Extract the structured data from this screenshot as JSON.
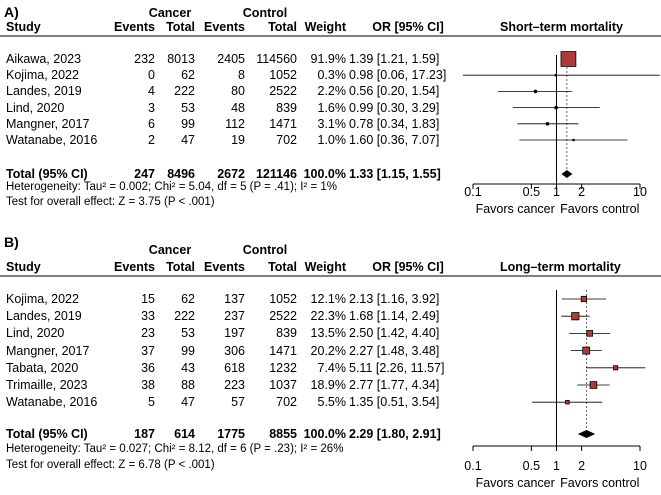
{
  "chart_data": [
    {
      "type": "forest",
      "panel_label": "A)",
      "title": "Short–term mortality",
      "group_headers": [
        "Cancer",
        "Control"
      ],
      "columns": [
        "Study",
        "Events",
        "Total",
        "Events",
        "Total",
        "Weight",
        "OR [95% CI]"
      ],
      "studies": [
        {
          "name": "Aikawa, 2023",
          "ev1": "232",
          "n1": "8013",
          "ev2": "2405",
          "n2": "114560",
          "weight": "91.9%",
          "ci_text": "1.39 [1.21,  1.59]",
          "or": 1.39,
          "lo": 1.21,
          "hi": 1.59,
          "w": 91.9
        },
        {
          "name": "Kojima, 2022",
          "ev1": "0",
          "n1": "62",
          "ev2": "8",
          "n2": "1052",
          "weight": "0.3%",
          "ci_text": "0.98 [0.06, 17.23]",
          "or": 0.98,
          "lo": 0.06,
          "hi": 17.23,
          "w": 0.3
        },
        {
          "name": "Landes, 2019",
          "ev1": "4",
          "n1": "222",
          "ev2": "80",
          "n2": "2522",
          "weight": "2.2%",
          "ci_text": "0.56 [0.20,  1.54]",
          "or": 0.56,
          "lo": 0.2,
          "hi": 1.54,
          "w": 2.2
        },
        {
          "name": "Lind, 2020",
          "ev1": "3",
          "n1": "53",
          "ev2": "48",
          "n2": "839",
          "weight": "1.6%",
          "ci_text": "0.99 [0.30,  3.29]",
          "or": 0.99,
          "lo": 0.3,
          "hi": 3.29,
          "w": 1.6
        },
        {
          "name": "Mangner, 2017",
          "ev1": "6",
          "n1": "99",
          "ev2": "112",
          "n2": "1471",
          "weight": "3.1%",
          "ci_text": "0.78 [0.34,  1.83]",
          "or": 0.78,
          "lo": 0.34,
          "hi": 1.83,
          "w": 3.1
        },
        {
          "name": "Watanabe, 2016",
          "ev1": "2",
          "n1": "47",
          "ev2": "19",
          "n2": "702",
          "weight": "1.0%",
          "ci_text": "1.60 [0.36,  7.07]",
          "or": 1.6,
          "lo": 0.36,
          "hi": 7.07,
          "w": 1.0
        }
      ],
      "total": {
        "name": "Total (95% CI)",
        "ev1": "247",
        "n1": "8496",
        "ev2": "2672",
        "n2": "121146",
        "weight": "100.0%",
        "ci_text": "1.33 [1.15,  1.55]",
        "or": 1.33,
        "lo": 1.15,
        "hi": 1.55
      },
      "heterogeneity": "Heterogeneity: Tau² = 0.002; Chi² = 5.04, df = 5 (P = .41); I² = 1%",
      "overall_effect": "Test for overall effect: Z = 3.75 (P < .001)",
      "x_ticks": [
        0.1,
        0.5,
        1,
        2,
        10
      ],
      "x_tick_labels": [
        "0.1",
        "0.5",
        "1",
        "2",
        "10"
      ],
      "xlim": [
        0.1,
        10
      ],
      "x_scale": "log",
      "favors_left": "Favors cancer",
      "favors_right": "Favors control"
    },
    {
      "type": "forest",
      "panel_label": "B)",
      "title": "Long–term mortality",
      "group_headers": [
        "Cancer",
        "Control"
      ],
      "columns": [
        "Study",
        "Events",
        "Total",
        "Events",
        "Total",
        "Weight",
        "OR [95% CI]"
      ],
      "studies": [
        {
          "name": "Kojima, 2022",
          "ev1": "15",
          "n1": "62",
          "ev2": "137",
          "n2": "1052",
          "weight": "12.1%",
          "ci_text": "2.13 [1.16,  3.92]",
          "or": 2.13,
          "lo": 1.16,
          "hi": 3.92,
          "w": 12.1
        },
        {
          "name": "Landes, 2019",
          "ev1": "33",
          "n1": "222",
          "ev2": "237",
          "n2": "2522",
          "weight": "22.3%",
          "ci_text": "1.68 [1.14,  2.49]",
          "or": 1.68,
          "lo": 1.14,
          "hi": 2.49,
          "w": 22.3
        },
        {
          "name": "Lind, 2020",
          "ev1": "23",
          "n1": "53",
          "ev2": "197",
          "n2": "839",
          "weight": "13.5%",
          "ci_text": "2.50 [1.42,  4.40]",
          "or": 2.5,
          "lo": 1.42,
          "hi": 4.4,
          "w": 13.5
        },
        {
          "name": "Mangner, 2017",
          "ev1": "37",
          "n1": "99",
          "ev2": "306",
          "n2": "1471",
          "weight": "20.2%",
          "ci_text": "2.27 [1.48,  3.48]",
          "or": 2.27,
          "lo": 1.48,
          "hi": 3.48,
          "w": 20.2
        },
        {
          "name": "Tabata, 2020",
          "ev1": "36",
          "n1": "43",
          "ev2": "618",
          "n2": "1232",
          "weight": "7.4%",
          "ci_text": "5.11 [2.26, 11.57]",
          "or": 5.11,
          "lo": 2.26,
          "hi": 11.57,
          "w": 7.4
        },
        {
          "name": "Trimaille, 2023",
          "ev1": "38",
          "n1": "88",
          "ev2": "223",
          "n2": "1037",
          "weight": "18.9%",
          "ci_text": "2.77 [1.77,  4.34]",
          "or": 2.77,
          "lo": 1.77,
          "hi": 4.34,
          "w": 18.9
        },
        {
          "name": "Watanabe, 2016",
          "ev1": "5",
          "n1": "47",
          "ev2": "57",
          "n2": "702",
          "weight": "5.5%",
          "ci_text": "1.35 [0.51,  3.54]",
          "or": 1.35,
          "lo": 0.51,
          "hi": 3.54,
          "w": 5.5
        }
      ],
      "total": {
        "name": "Total (95% CI)",
        "ev1": "187",
        "n1": "614",
        "ev2": "1775",
        "n2": "8855",
        "weight": "100.0%",
        "ci_text": "2.29 [1.80,  2.91]",
        "or": 2.29,
        "lo": 1.8,
        "hi": 2.91
      },
      "heterogeneity": "Heterogeneity: Tau² = 0.027; Chi² = 8.12, df = 6 (P = .23); I² = 26%",
      "overall_effect": "Test for overall effect: Z = 6.78 (P < .001)",
      "x_ticks": [
        0.1,
        0.5,
        1,
        2,
        10
      ],
      "x_tick_labels": [
        "0.1",
        "0.5",
        "1",
        "2",
        "10"
      ],
      "xlim": [
        0.1,
        10
      ],
      "x_scale": "log",
      "favors_left": "Favors cancer",
      "favors_right": "Favors control"
    }
  ],
  "colors": {
    "square_fill": "#b03a3a",
    "square_stroke": "#000000",
    "diamond": "#000000",
    "ref_line": "#000000",
    "pooled_line": "#666666"
  }
}
